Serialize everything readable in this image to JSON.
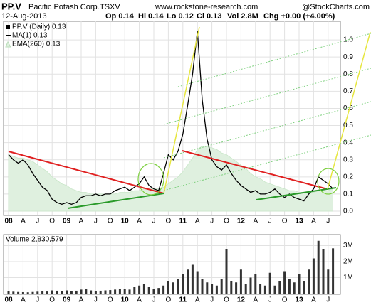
{
  "chart_data": {
    "type": "line",
    "header": {
      "symbol": "PP.V",
      "company": "Pacific Potash Corp.",
      "exchange": "TSXV",
      "watermark": "www.rockstone-research.com",
      "source": "@StockCharts.com",
      "date": "12-Aug-2013",
      "open": "Op 0.14",
      "high": "Hi 0.14",
      "low": "Lo 0.12",
      "close": "Cl 0.13",
      "vol": "Vol 2.8M",
      "change": "Chg +0.00 (+4.00%)"
    },
    "legend_title": "PP.V (Daily) 0.13",
    "categories": [
      "08",
      null,
      null,
      "A",
      null,
      null,
      "J",
      null,
      null,
      "O",
      null,
      null,
      "09",
      null,
      null,
      "A",
      null,
      null,
      "J",
      null,
      null,
      "O",
      null,
      null,
      "10",
      null,
      null,
      "A",
      null,
      null,
      "J",
      null,
      null,
      "O",
      null,
      null,
      "11",
      null,
      null,
      "A",
      null,
      null,
      "J",
      null,
      null,
      "O",
      null,
      null,
      "12",
      null,
      null,
      "A",
      null,
      null,
      "J",
      null,
      null,
      "O",
      null,
      null,
      "13",
      null,
      null,
      "A",
      null,
      null,
      "J",
      null
    ],
    "series": [
      {
        "name": "MA(1) 0.13",
        "color": "#000000",
        "values": [
          0.33,
          0.3,
          0.28,
          0.3,
          0.27,
          0.22,
          0.18,
          0.14,
          0.12,
          0.07,
          0.05,
          0.04,
          0.05,
          0.04,
          0.05,
          0.08,
          0.09,
          0.09,
          0.1,
          0.09,
          0.1,
          0.1,
          0.12,
          0.13,
          0.14,
          0.12,
          0.14,
          0.16,
          0.2,
          0.15,
          0.13,
          0.12,
          0.22,
          0.33,
          0.3,
          0.35,
          0.45,
          0.62,
          0.8,
          1.05,
          0.65,
          0.42,
          0.3,
          0.26,
          0.24,
          0.27,
          0.22,
          0.18,
          0.15,
          0.13,
          0.11,
          0.12,
          0.1,
          0.1,
          0.11,
          0.13,
          0.1,
          0.08,
          0.1,
          0.08,
          0.07,
          0.06,
          0.1,
          0.13,
          0.2,
          0.18,
          0.16,
          0.13
        ]
      },
      {
        "name": "EMA(260) 0.13",
        "color": "#dff0df",
        "values": [
          0.33,
          0.32,
          0.31,
          0.31,
          0.3,
          0.29,
          0.27,
          0.25,
          0.23,
          0.2,
          0.18,
          0.16,
          0.15,
          0.13,
          0.12,
          0.11,
          0.11,
          0.1,
          0.1,
          0.1,
          0.1,
          0.1,
          0.1,
          0.11,
          0.11,
          0.11,
          0.12,
          0.12,
          0.13,
          0.13,
          0.13,
          0.13,
          0.14,
          0.16,
          0.18,
          0.2,
          0.23,
          0.27,
          0.31,
          0.36,
          0.38,
          0.38,
          0.37,
          0.36,
          0.34,
          0.33,
          0.31,
          0.29,
          0.27,
          0.25,
          0.22,
          0.2,
          0.19,
          0.17,
          0.16,
          0.15,
          0.14,
          0.13,
          0.12,
          0.12,
          0.11,
          0.11,
          0.11,
          0.11,
          0.12,
          0.12,
          0.12,
          0.13
        ]
      }
    ],
    "ylim": [
      0,
      1.1
    ],
    "yticks": [
      {
        "value": 0,
        "label": "0.0"
      },
      0.1,
      0.2,
      0.3,
      0.4,
      0.5,
      0.6,
      0.7,
      0.8,
      0.9,
      {
        "value": 1,
        "label": "1.0"
      }
    ],
    "grid": true,
    "volume": {
      "title": "Volume 2,830,579",
      "color": "#333333",
      "values": [
        150000,
        120000,
        100000,
        90000,
        80000,
        100000,
        120000,
        150000,
        130000,
        200000,
        180000,
        150000,
        200000,
        150000,
        180000,
        250000,
        300000,
        200000,
        150000,
        180000,
        200000,
        220000,
        250000,
        300000,
        300000,
        250000,
        400000,
        500000,
        600000,
        400000,
        300000,
        350000,
        500000,
        800000,
        700000,
        900000,
        1200000,
        1500000,
        1800000,
        1400000,
        900000,
        700000,
        600000,
        500000,
        900000,
        2800000,
        800000,
        700000,
        1500000,
        600000,
        1000000,
        1200000,
        600000,
        500000,
        1300000,
        500000,
        800000,
        1400000,
        900000,
        700000,
        1200000,
        800000,
        1500000,
        2200000,
        3300000,
        2800000,
        1500000,
        2830579
      ],
      "ylim": [
        0,
        3600000
      ],
      "yticks": [
        {
          "value": 1000000,
          "label": "1M"
        },
        {
          "value": 2000000,
          "label": "2M"
        },
        {
          "value": 3000000,
          "label": "3M"
        }
      ]
    }
  }
}
